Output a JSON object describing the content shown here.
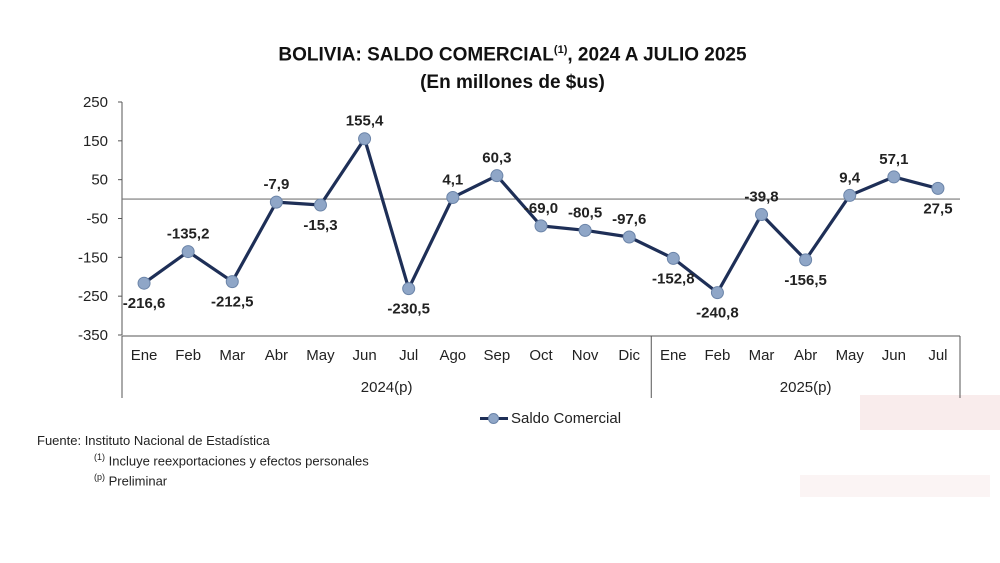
{
  "header": {
    "title_main": "BOLIVIA: SALDO COMERCIAL",
    "title_sup": "(1)",
    "title_rest": ", 2024 A JULIO 2025",
    "subtitle": "(En millones de $us)"
  },
  "chart_data": {
    "type": "line",
    "title": "BOLIVIA: SALDO COMERCIAL(1), 2024 A JULIO 2025",
    "subtitle": "(En millones de $us)",
    "categories": [
      "Ene",
      "Feb",
      "Mar",
      "Abr",
      "May",
      "Jun",
      "Jul",
      "Ago",
      "Sep",
      "Oct",
      "Nov",
      "Dic",
      "Ene",
      "Feb",
      "Mar",
      "Abr",
      "May",
      "Jun",
      "Jul"
    ],
    "groups": [
      {
        "label": "2024(p)",
        "count": 12
      },
      {
        "label": "2025(p)",
        "count": 7
      }
    ],
    "series": [
      {
        "name": "Saldo Comercial",
        "values": [
          -216.6,
          -135.2,
          -212.5,
          -7.9,
          -15.3,
          155.4,
          -230.5,
          4.1,
          60.3,
          -69.0,
          -80.5,
          -97.6,
          -152.8,
          -240.8,
          -39.8,
          -156.5,
          9.4,
          57.1,
          27.5
        ],
        "labels": [
          "-216,6",
          "-135,2",
          "-212,5",
          "-7,9",
          "-15,3",
          "155,4",
          "-230,5",
          "4,1",
          "60,3",
          "-69,0",
          "-80,5",
          "-97,6",
          "-152,8",
          "-240,8",
          "-39,8",
          "-156,5",
          "9,4",
          "57,1",
          "27,5"
        ],
        "line_color": "#1e2f57",
        "marker_color": "#8fa6c7"
      }
    ],
    "yticks": [
      250,
      150,
      50,
      -50,
      -150,
      -250,
      -350
    ],
    "ytick_labels": [
      "250",
      "150",
      "50",
      "-50",
      "-150",
      "-250",
      "-350"
    ],
    "ylim": [
      -350,
      250
    ],
    "grid": false,
    "legend_position": "bottom-center"
  },
  "legend": {
    "label": "Saldo Comercial"
  },
  "footnotes": {
    "source": "Fuente: Instituto Nacional de Estadística",
    "note1_sup": "(1)",
    "note1": "Incluye reexportaciones y efectos personales",
    "note2_sup": "(p)",
    "note2": "Preliminar"
  }
}
